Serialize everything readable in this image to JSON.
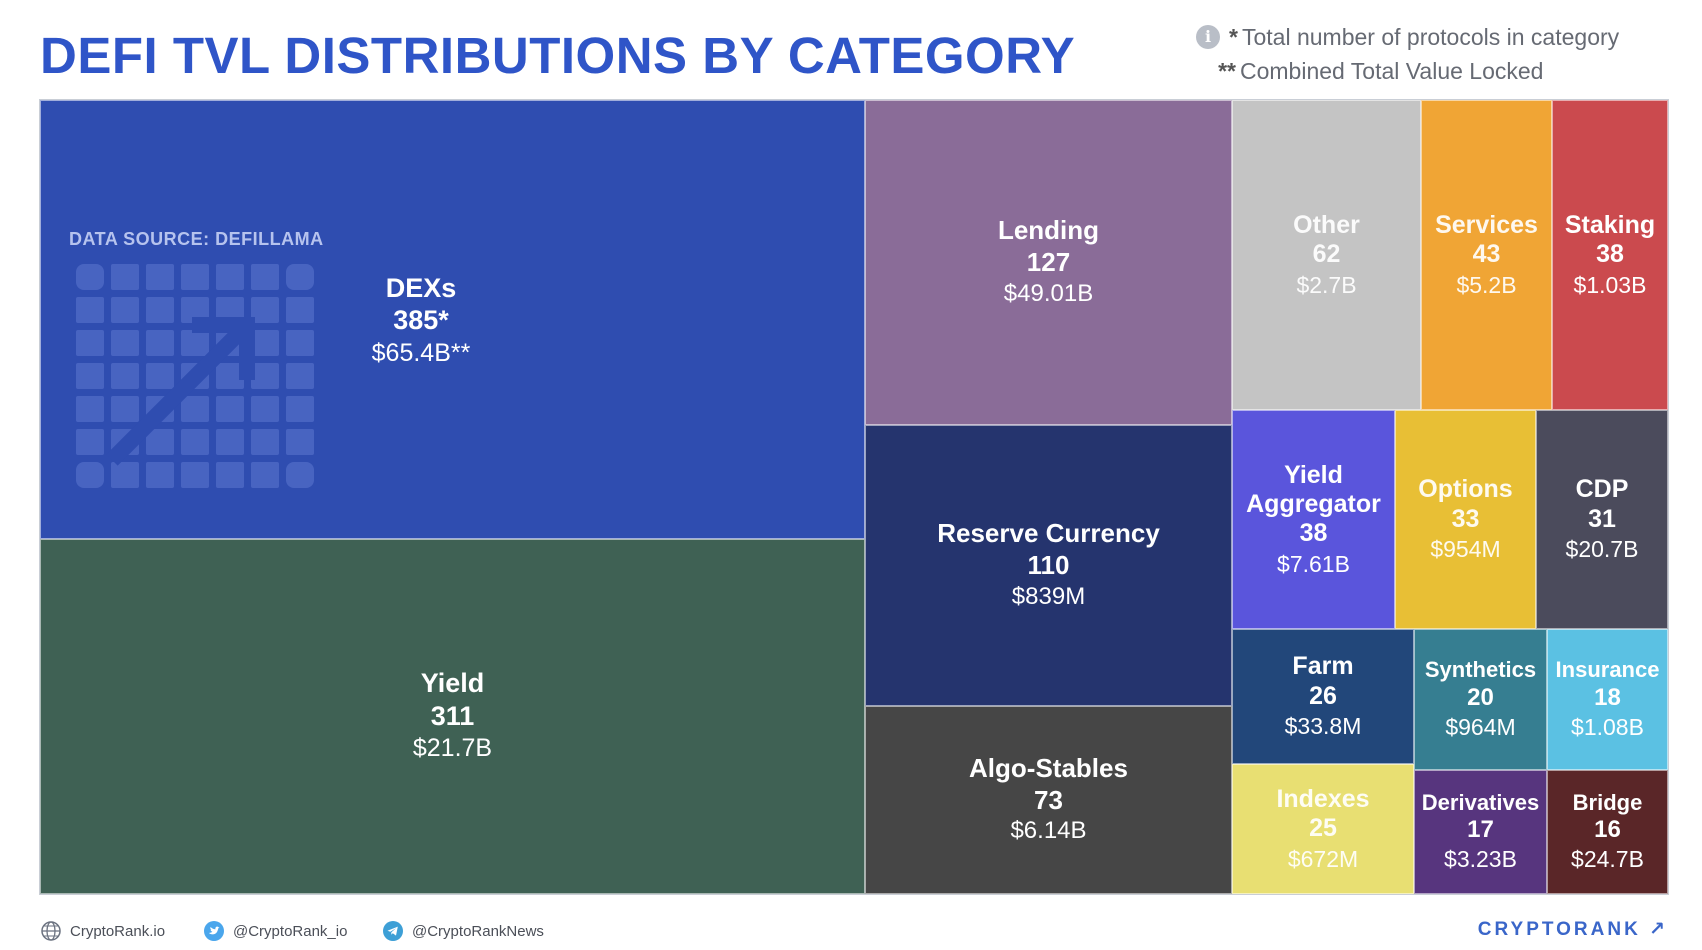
{
  "header": {
    "title": "DEFI TVL DISTRIBUTIONS BY CATEGORY",
    "note_protocols_marker": "*",
    "note_protocols": "Total number of protocols in category",
    "note_tvl_marker": "**",
    "note_tvl": "Combined Total Value Locked"
  },
  "source": {
    "label": "DATA SOURCE: DEFILLAMA"
  },
  "chart_data": {
    "type": "treemap",
    "title": "DEFI TVL DISTRIBUTIONS BY CATEGORY",
    "value_units": "USD",
    "categories": [
      {
        "name": "DEXs",
        "protocols": "385*",
        "tvl": "$65.4B**",
        "tvl_usd_billions": 65.4,
        "color": "#2f4db0"
      },
      {
        "name": "Yield",
        "protocols": "311",
        "tvl": "$21.7B",
        "tvl_usd_billions": 21.7,
        "color": "#3f6154"
      },
      {
        "name": "Lending",
        "protocols": "127",
        "tvl": "$49.01B",
        "tvl_usd_billions": 49.01,
        "color": "#8a6c98"
      },
      {
        "name": "Reserve Currency",
        "protocols": "110",
        "tvl": "$839M",
        "tvl_usd_billions": 0.839,
        "color": "#25346e"
      },
      {
        "name": "Algo-Stables",
        "protocols": "73",
        "tvl": "$6.14B",
        "tvl_usd_billions": 6.14,
        "color": "#464646"
      },
      {
        "name": "Other",
        "protocols": "62",
        "tvl": "$2.7B",
        "tvl_usd_billions": 2.7,
        "color": "#c4c4c4"
      },
      {
        "name": "Services",
        "protocols": "43",
        "tvl": "$5.2B",
        "tvl_usd_billions": 5.2,
        "color": "#f0a535"
      },
      {
        "name": "Staking",
        "protocols": "38",
        "tvl": "$1.03B",
        "tvl_usd_billions": 1.03,
        "color": "#cb4a4e"
      },
      {
        "name": "Yield Aggregator",
        "protocols": "38",
        "tvl": "$7.61B",
        "tvl_usd_billions": 7.61,
        "color": "#5a55dc"
      },
      {
        "name": "Options",
        "protocols": "33",
        "tvl": "$954M",
        "tvl_usd_billions": 0.954,
        "color": "#e8bf35"
      },
      {
        "name": "CDP",
        "protocols": "31",
        "tvl": "$20.7B",
        "tvl_usd_billions": 20.7,
        "color": "#4b4b5c"
      },
      {
        "name": "Farm",
        "protocols": "26",
        "tvl": "$33.8M",
        "tvl_usd_billions": 0.0338,
        "color": "#22477a"
      },
      {
        "name": "Synthetics",
        "protocols": "20",
        "tvl": "$964M",
        "tvl_usd_billions": 0.964,
        "color": "#367e91"
      },
      {
        "name": "Insurance",
        "protocols": "18",
        "tvl": "$1.08B",
        "tvl_usd_billions": 1.08,
        "color": "#5bc1e3"
      },
      {
        "name": "Indexes",
        "protocols": "25",
        "tvl": "$672M",
        "tvl_usd_billions": 0.672,
        "color": "#e8df72"
      },
      {
        "name": "Derivatives",
        "protocols": "17",
        "tvl": "$3.23B",
        "tvl_usd_billions": 3.23,
        "color": "#57357e"
      },
      {
        "name": "Bridge",
        "protocols": "16",
        "tvl": "$24.7B",
        "tvl_usd_billions": 24.7,
        "color": "#5a2628"
      }
    ]
  },
  "footer": {
    "website": "CryptoRank.io",
    "twitter": "@CryptoRank_io",
    "telegram": "@CryptoRankNews",
    "brand": "CRYPTORANK ↗"
  },
  "colors": {
    "title": "#2f55c8",
    "brand": "#3a66c9"
  }
}
